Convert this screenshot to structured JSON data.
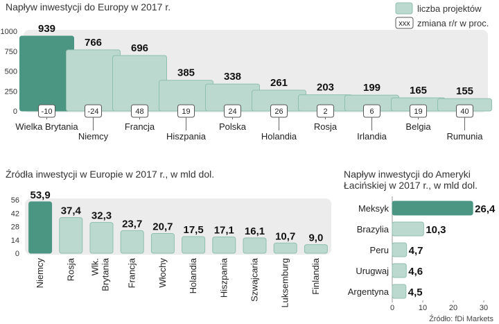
{
  "colors": {
    "highlight": "#4a9683",
    "bar": "#bcd9cf",
    "bar_stroke": "#8fbfae",
    "panel": "#ececec",
    "box_stroke": "#555555"
  },
  "legend": {
    "projects_label": "liczba projektów",
    "change_box": "xxx",
    "change_label": "zmiana r/r w proc."
  },
  "source": "Źródło: fDi Markets",
  "chart_data": [
    {
      "type": "bar",
      "title": "Napływ inwestycji do Europy w 2017 r.",
      "categories": [
        "Wielka Brytania",
        "Niemcy",
        "Francja",
        "Hiszpania",
        "Polska",
        "Holandia",
        "Rosja",
        "Irlandia",
        "Belgia",
        "Rumunia"
      ],
      "values": [
        939,
        766,
        696,
        385,
        338,
        261,
        203,
        199,
        165,
        155
      ],
      "changes": [
        "-10",
        "-24",
        "48",
        "19",
        "24",
        "26",
        "2",
        "6",
        "19",
        "40"
      ],
      "value_labels": [
        "939",
        "766",
        "696",
        "385",
        "338",
        "261",
        "203",
        "199",
        "165",
        "155"
      ],
      "yticks": [
        0,
        250,
        500,
        750,
        1000
      ],
      "ytick_labels": [
        "0",
        "250",
        "500",
        "750",
        "1000"
      ],
      "ylim": [
        0,
        1000
      ],
      "highlight_index": 0
    },
    {
      "type": "bar",
      "title": "Źródła inwestycji w Europie w 2017 r., w mld dol.",
      "categories": [
        "Niemcy",
        "Rosja",
        "Wlk. Brytania",
        "Francja",
        "Włochy",
        "Holandia",
        "Hiszpania",
        "Szwajcaria",
        "Luksemburg",
        "Finlandia"
      ],
      "values": [
        53.9,
        37.4,
        32.3,
        23.7,
        20.7,
        17.5,
        17.1,
        16.1,
        10.7,
        9.0
      ],
      "value_labels": [
        "53,9",
        "37,4",
        "32,3",
        "23,7",
        "20,7",
        "17,5",
        "17,1",
        "16,1",
        "10,7",
        "9,0"
      ],
      "yticks": [
        0,
        14,
        28,
        42,
        56
      ],
      "ytick_labels": [
        "0",
        "14",
        "28",
        "42",
        "56"
      ],
      "ylim": [
        0,
        56
      ],
      "highlight_index": 0
    },
    {
      "type": "bar",
      "orientation": "horizontal",
      "title_lines": [
        "Napływ inwestycji do Ameryki",
        "Łacińskiej w 2017 r., w mld dol."
      ],
      "categories": [
        "Meksyk",
        "Brazylia",
        "Peru",
        "Urugwaj",
        "Argentyna"
      ],
      "values": [
        26.4,
        10.3,
        4.7,
        4.6,
        4.5
      ],
      "value_labels": [
        "26,4",
        "10,3",
        "4,7",
        "4,6",
        "4,5"
      ],
      "xticks": [
        0,
        10,
        20,
        30
      ],
      "xtick_labels": [
        "0",
        "10",
        "20",
        "30"
      ],
      "xlim": [
        0,
        30
      ],
      "highlight_index": 0
    }
  ]
}
